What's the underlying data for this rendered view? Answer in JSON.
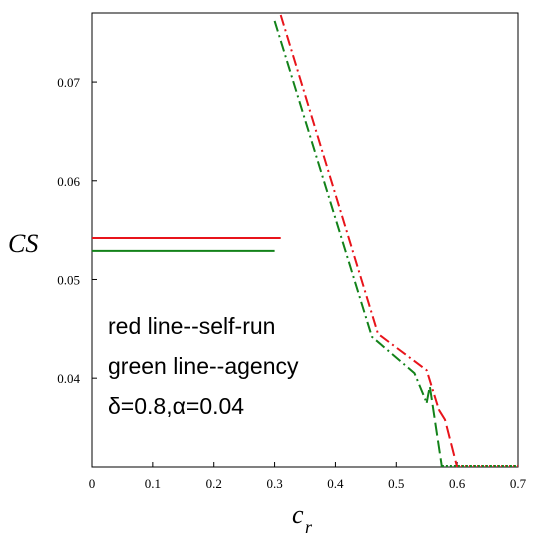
{
  "chart_data": {
    "type": "line",
    "xlabel": "c",
    "xlabel_sub": "r",
    "ylabel": "CS",
    "xlim": [
      0,
      0.7
    ],
    "ylim": [
      0.031,
      0.077
    ],
    "xticks": [
      0,
      0.1,
      0.2,
      0.3,
      0.4,
      0.5,
      0.6,
      0.7
    ],
    "xtick_labels": [
      "0",
      "0.1",
      "0.2",
      "0.3",
      "0.4",
      "0.5",
      "0.6",
      "0.7"
    ],
    "yticks": [
      0.04,
      0.05,
      0.06,
      0.07
    ],
    "ytick_labels": [
      "0.04",
      "0.05",
      "0.06",
      "0.07"
    ],
    "grid": false,
    "series": [
      {
        "color": "#e8141b",
        "segments": [
          {
            "style": "solid",
            "points": [
              [
                0,
                0.0542
              ],
              [
                0.31,
                0.0542
              ]
            ]
          },
          {
            "style": "dashdot",
            "points": [
              [
                0.31,
                0.0768
              ],
              [
                0.47,
                0.0445
              ],
              [
                0.55,
                0.0408
              ],
              [
                0.57,
                0.0368
              ]
            ]
          },
          {
            "style": "dashed",
            "points": [
              [
                0.57,
                0.0368
              ],
              [
                0.58,
                0.0358
              ],
              [
                0.6,
                0.031
              ]
            ]
          },
          {
            "style": "dotted",
            "points": [
              [
                0.6,
                0.0311
              ],
              [
                0.7,
                0.0311
              ]
            ]
          }
        ]
      },
      {
        "color": "#13821a",
        "segments": [
          {
            "style": "solid",
            "points": [
              [
                0,
                0.0529
              ],
              [
                0.3,
                0.0529
              ]
            ]
          },
          {
            "style": "dashdot",
            "points": [
              [
                0.3,
                0.0762
              ],
              [
                0.46,
                0.0442
              ],
              [
                0.53,
                0.0405
              ],
              [
                0.55,
                0.0375
              ]
            ]
          },
          {
            "style": "dashed",
            "points": [
              [
                0.55,
                0.0375
              ],
              [
                0.555,
                0.0392
              ],
              [
                0.575,
                0.031
              ]
            ]
          },
          {
            "style": "dotted",
            "points": [
              [
                0.575,
                0.0311
              ],
              [
                0.7,
                0.0311
              ]
            ]
          }
        ]
      }
    ],
    "annotations": [
      "red line--self-run",
      "green line--agency",
      "δ=0.8,α=0.04"
    ]
  }
}
